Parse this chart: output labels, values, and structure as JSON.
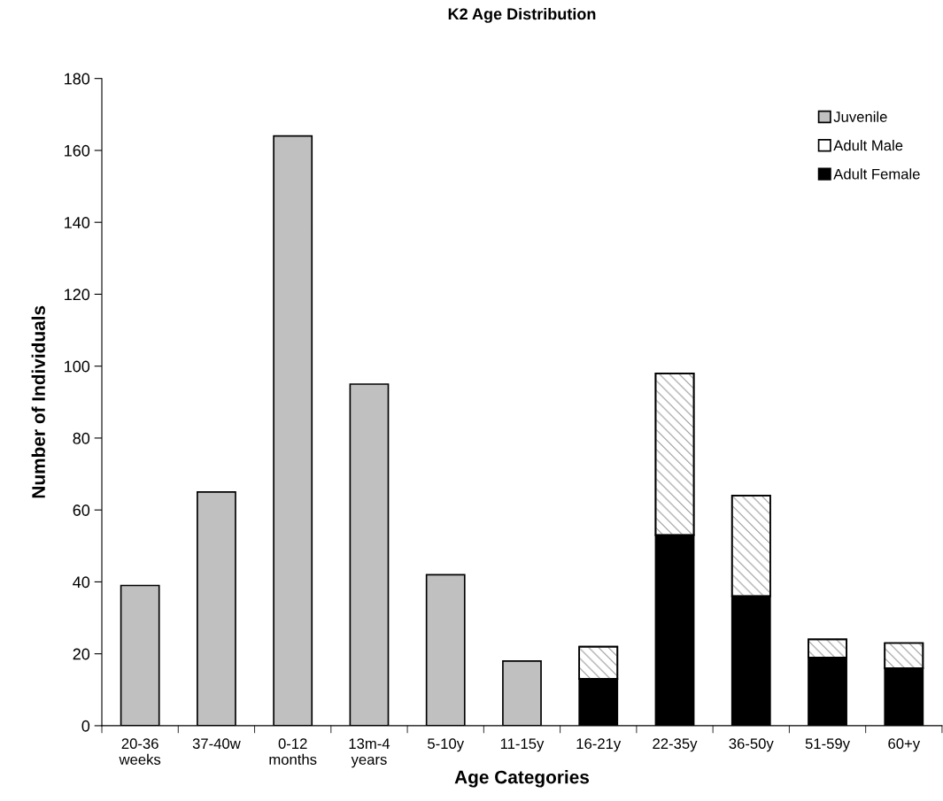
{
  "chart_data": {
    "type": "bar",
    "title": "K2 Age Distribution",
    "xlabel": "Age Categories",
    "ylabel": "Number of Individuals",
    "categories": [
      "20-36\nweeks",
      "37-40w",
      "0-12\nmonths",
      "13m-4\nyears",
      "5-10y",
      "11-15y",
      "16-21y",
      "22-35y",
      "36-50y",
      "51-59y",
      "60+y"
    ],
    "series": [
      {
        "name": "Adult Female",
        "color": "#000000",
        "values": [
          null,
          null,
          null,
          null,
          null,
          null,
          13,
          53,
          36,
          19,
          16
        ]
      },
      {
        "name": "Adult Male",
        "color": "#ffffff",
        "values": [
          null,
          null,
          null,
          null,
          null,
          null,
          9,
          45,
          28,
          5,
          7
        ]
      },
      {
        "name": "Juvenile",
        "color": "#c0c0c0",
        "values": [
          39,
          65,
          164,
          95,
          42,
          18,
          null,
          null,
          null,
          null,
          null
        ]
      }
    ],
    "stacked": true,
    "ylim": [
      0,
      180
    ],
    "yticks": [
      0,
      20,
      40,
      60,
      80,
      100,
      120,
      140,
      160,
      180
    ],
    "grid": false,
    "legend": "top right"
  }
}
